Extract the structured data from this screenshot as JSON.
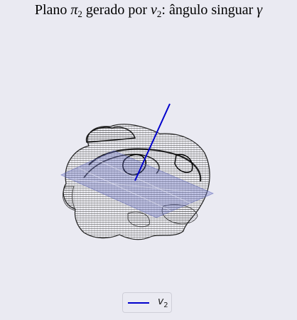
{
  "title": {
    "prefix": "Plano ",
    "pi": "π",
    "pi_sub": "2",
    "mid": " gerado por ",
    "v": "v",
    "v_sub": "2",
    "suffix": ": ângulo singuar ",
    "gamma": "γ"
  },
  "legend": {
    "symbol": "v",
    "subscript": "2",
    "line_color": "#0000cc"
  },
  "colors": {
    "background": "#eaeaf2",
    "vector": "#0000cc",
    "plane": "#6a72c8",
    "mesh": "#1a1a1a"
  }
}
